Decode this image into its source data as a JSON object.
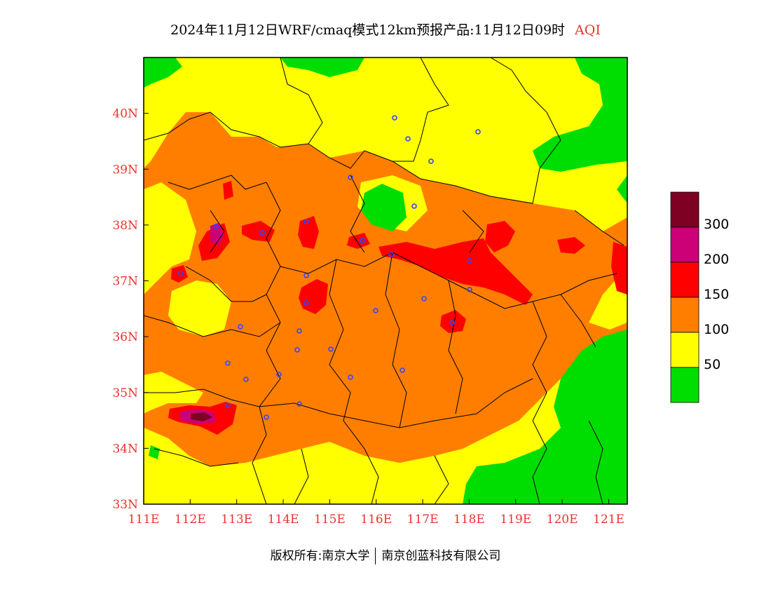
{
  "header": {
    "title": "2024年11月12日WRF/cmaq模式12km预报产品:11月12日09时",
    "product": "AQI"
  },
  "footer": {
    "copyright": "版权所有:南京大学",
    "partner": "南京创蓝科技有限公司"
  },
  "map": {
    "lon_range": [
      111,
      121.4
    ],
    "lat_range": [
      33,
      41
    ],
    "x_ticks": [
      "111E",
      "112E",
      "113E",
      "114E",
      "115E",
      "116E",
      "117E",
      "118E",
      "119E",
      "120E",
      "121E"
    ],
    "y_ticks": [
      "33N",
      "34N",
      "35N",
      "36N",
      "37N",
      "38N",
      "39N",
      "40N"
    ],
    "colors": {
      "green": "#00dd00",
      "yellow": "#ffff00",
      "orange": "#ff7e00",
      "red": "#ff0000",
      "purple": "#cc0077",
      "maroon": "#7e0023",
      "axis_label": "#e8342c",
      "city_marker": "#3344ff"
    }
  },
  "legend": {
    "labels": [
      "300",
      "200",
      "150",
      "100",
      "50"
    ],
    "colors": [
      "#7e0023",
      "#cc0077",
      "#ff0000",
      "#ff7e00",
      "#ffff00",
      "#00dd00"
    ]
  }
}
